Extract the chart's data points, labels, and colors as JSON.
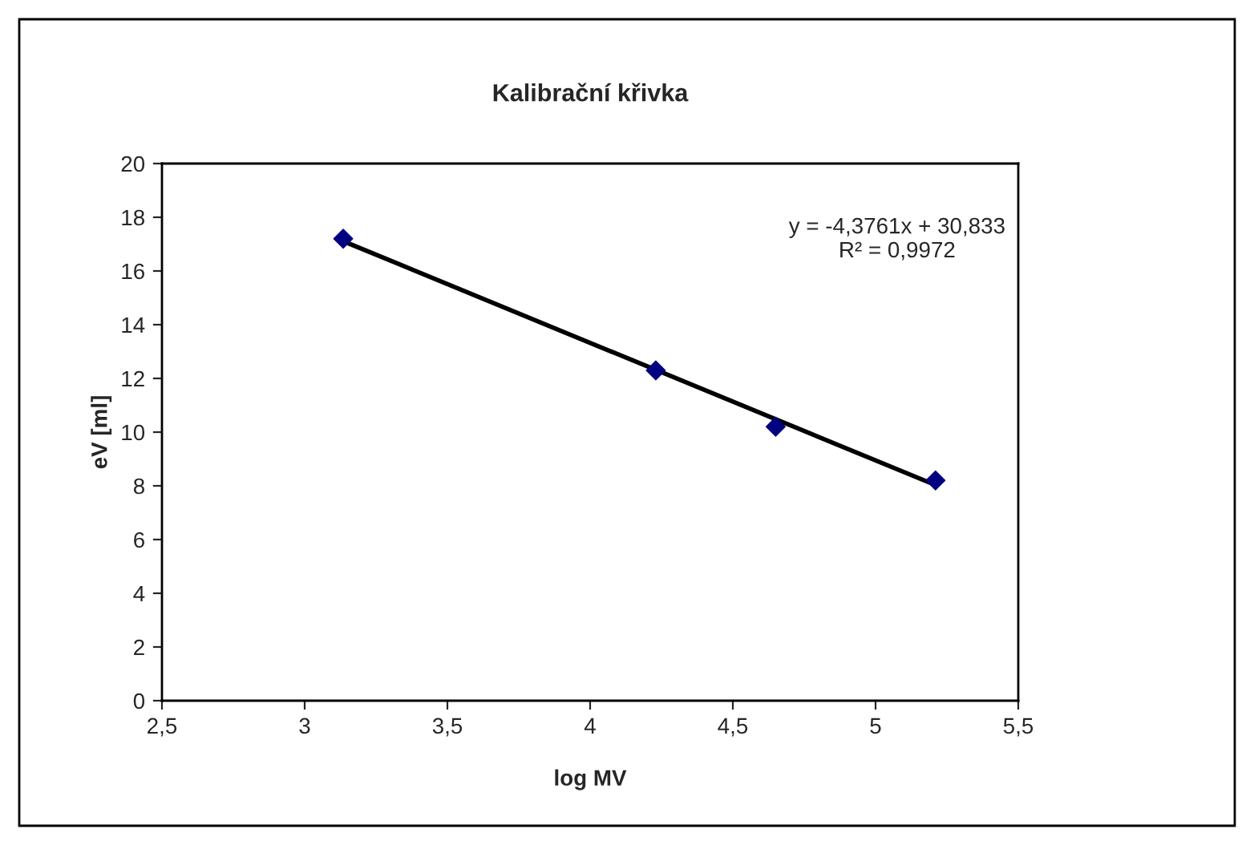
{
  "chart_data": {
    "type": "scatter",
    "title": "Kalibrační křivka",
    "xlabel": "log MV",
    "ylabel": "eV [ml]",
    "annotations": [
      "y = -4,3761x + 30,833",
      "R² = 0,9972"
    ],
    "series": [
      {
        "color": "#000080",
        "marker": "diamond",
        "x": [
          3.135,
          4.23,
          4.65,
          5.21
        ],
        "values": [
          17.2,
          12.3,
          10.2,
          8.2
        ]
      },
      {
        "type": "line",
        "color": "#000000",
        "marker": "none",
        "line_style": "solid",
        "x": [
          3.135,
          5.21
        ],
        "values": [
          17.11,
          8.03
        ]
      }
    ],
    "xlim": [
      2.5,
      5.5
    ],
    "xticks": [
      {
        "value": 2.5,
        "label": "2,5"
      },
      3,
      {
        "value": 3.5,
        "label": "3,5"
      },
      4,
      {
        "value": 4.5,
        "label": "4,5"
      },
      5,
      {
        "value": 5.5,
        "label": "5,5"
      }
    ],
    "ylim": [
      0,
      20
    ],
    "yticks": [
      0,
      2,
      4,
      6,
      8,
      10,
      12,
      14,
      16,
      18,
      20
    ],
    "grid": false,
    "legend": false
  }
}
